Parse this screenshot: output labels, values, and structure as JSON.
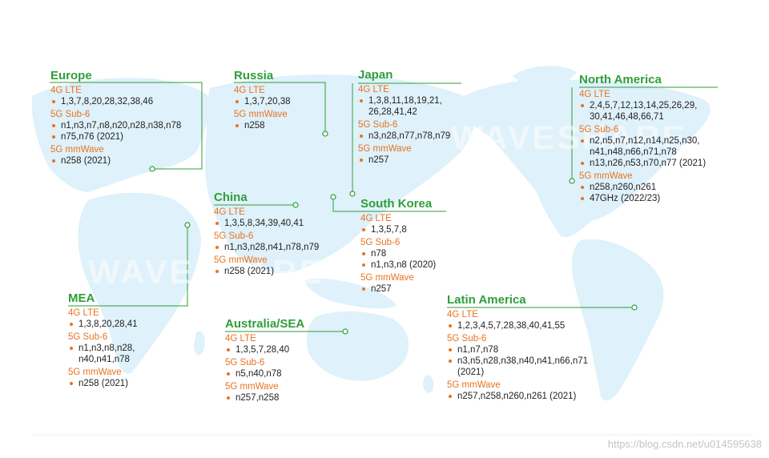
{
  "watermarks": [
    "WAVESHARE",
    "WAVESHARE"
  ],
  "footer": {
    "url": "https://blog.csdn.net/u014595638"
  },
  "colors": {
    "title": "#2e9e3a",
    "section": "#e8731f",
    "line": "#2e9e3a",
    "map": "#dff1fa"
  },
  "regions": [
    {
      "id": "europe",
      "title": "Europe",
      "sections": [
        {
          "label": "4G LTE",
          "items": [
            [
              "1,3,7,8,20,28,32,38,46"
            ]
          ]
        },
        {
          "label": "5G Sub-6",
          "items": [
            [
              "n1,n3,n7,n8,n20,n28,n38,n78"
            ],
            [
              "n75,n76 (2021)"
            ]
          ]
        },
        {
          "label": "5G mmWave",
          "items": [
            [
              "n258 (2021)"
            ]
          ]
        }
      ]
    },
    {
      "id": "russia",
      "title": "Russia",
      "sections": [
        {
          "label": "4G LTE",
          "items": [
            [
              "1,3,7,20,38"
            ]
          ]
        },
        {
          "label": "5G mmWave",
          "items": [
            [
              "n258"
            ]
          ]
        }
      ]
    },
    {
      "id": "japan",
      "title": "Japan",
      "sections": [
        {
          "label": "4G LTE",
          "items": [
            [
              "1,3,8,11,18,19,21,",
              "26,28,41,42"
            ]
          ]
        },
        {
          "label": "5G Sub-6",
          "items": [
            [
              "n3,n28,n77,n78,n79"
            ]
          ]
        },
        {
          "label": "5G mmWave",
          "items": [
            [
              "n257"
            ]
          ]
        }
      ]
    },
    {
      "id": "north-america",
      "title": "North America",
      "sections": [
        {
          "label": "4G LTE",
          "items": [
            [
              "2,4,5,7,12,13,14,25,26,29,",
              "30,41,46,48,66,71"
            ]
          ]
        },
        {
          "label": "5G Sub-6",
          "items": [
            [
              "n2,n5,n7,n12,n14,n25,n30,",
              "n41,n48,n66,n71,n78"
            ],
            [
              "n13,n26,n53,n70,n77 (2021)"
            ]
          ]
        },
        {
          "label": "5G mmWave",
          "items": [
            [
              "n258,n260,n261"
            ],
            [
              "47GHz (2022/23)"
            ]
          ]
        }
      ]
    },
    {
      "id": "china",
      "title": "China",
      "sections": [
        {
          "label": "4G LTE",
          "items": [
            [
              "1,3,5,8,34,39,40,41"
            ]
          ]
        },
        {
          "label": "5G Sub-6",
          "items": [
            [
              "n1,n3,n28,n41,n78,n79"
            ]
          ]
        },
        {
          "label": "5G mmWave",
          "items": [
            [
              "n258 (2021)"
            ]
          ]
        }
      ]
    },
    {
      "id": "south-korea",
      "title": "South Korea",
      "sections": [
        {
          "label": "4G LTE",
          "items": [
            [
              "1,3,5,7,8"
            ]
          ]
        },
        {
          "label": "5G Sub-6",
          "items": [
            [
              "n78"
            ],
            [
              "n1,n3,n8 (2020)"
            ]
          ]
        },
        {
          "label": "5G mmWave",
          "items": [
            [
              "n257"
            ]
          ]
        }
      ]
    },
    {
      "id": "mea",
      "title": "MEA",
      "sections": [
        {
          "label": "4G LTE",
          "items": [
            [
              "1,3,8,20,28,41"
            ]
          ]
        },
        {
          "label": "5G Sub-6",
          "items": [
            [
              "n1,n3,n8,n28,",
              "n40,n41,n78"
            ]
          ]
        },
        {
          "label": "5G mmWave",
          "items": [
            [
              "n258 (2021)"
            ]
          ]
        }
      ]
    },
    {
      "id": "australia-sea",
      "title": "Australia/SEA",
      "sections": [
        {
          "label": "4G LTE",
          "items": [
            [
              "1,3,5,7,28,40"
            ]
          ]
        },
        {
          "label": "5G Sub-6",
          "items": [
            [
              "n5,n40,n78"
            ]
          ]
        },
        {
          "label": "5G mmWave",
          "items": [
            [
              "n257,n258"
            ]
          ]
        }
      ]
    },
    {
      "id": "latin-america",
      "title": "Latin America",
      "sections": [
        {
          "label": "4G LTE",
          "items": [
            [
              "1,2,3,4,5,7,28,38,40,41,55"
            ]
          ]
        },
        {
          "label": "5G Sub-6",
          "items": [
            [
              "n1,n7,n78"
            ],
            [
              "n3,n5,n28,n38,n40,n41,n66,n71",
              "(2021)"
            ]
          ]
        },
        {
          "label": "5G mmWave",
          "items": [
            [
              "n257,n258,n260,n261 (2021)"
            ]
          ]
        }
      ]
    }
  ]
}
